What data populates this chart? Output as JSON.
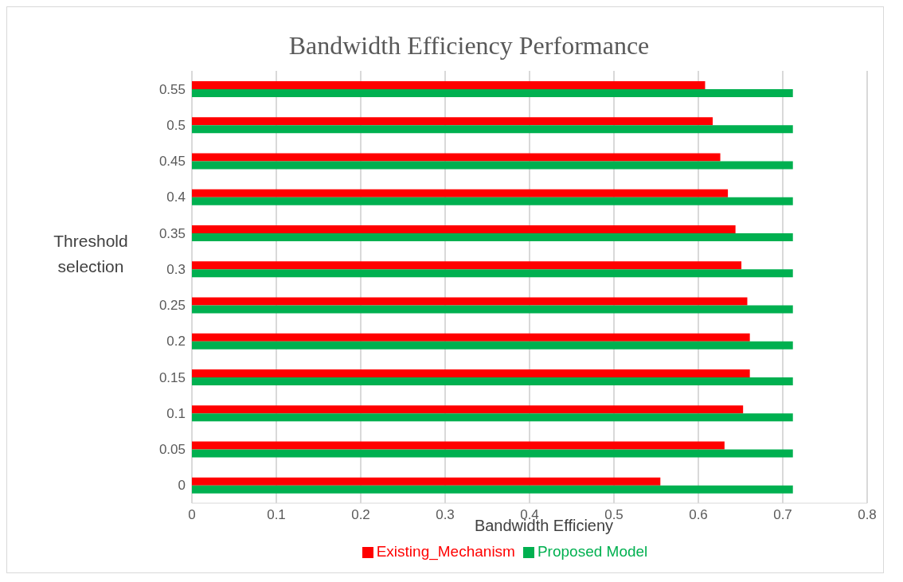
{
  "chart_data": {
    "type": "bar",
    "orientation": "horizontal",
    "title": "Bandwidth Efficiency Performance",
    "xlabel": "Bandwidth Efficieny",
    "ylabel": "Threshold selection",
    "categories": [
      "0.55",
      "0.5",
      "0.45",
      "0.4",
      "0.35",
      "0.3",
      "0.25",
      "0.2",
      "0.15",
      "0.1",
      "0.05",
      "0"
    ],
    "series": [
      {
        "name": "Existing_Mechanism",
        "color": "#ff0000",
        "values": [
          0.608,
          0.617,
          0.626,
          0.635,
          0.644,
          0.651,
          0.658,
          0.661,
          0.661,
          0.653,
          0.631,
          0.555
        ]
      },
      {
        "name": "Proposed Model",
        "color": "#00b050",
        "values": [
          0.712,
          0.712,
          0.712,
          0.712,
          0.712,
          0.712,
          0.712,
          0.712,
          0.712,
          0.712,
          0.712,
          0.712
        ]
      }
    ],
    "xlim": [
      0,
      0.8
    ],
    "xticks": [
      0,
      0.1,
      0.2,
      0.3,
      0.4,
      0.5,
      0.6,
      0.7,
      0.8
    ],
    "grid": "x",
    "legend": "bottom"
  }
}
